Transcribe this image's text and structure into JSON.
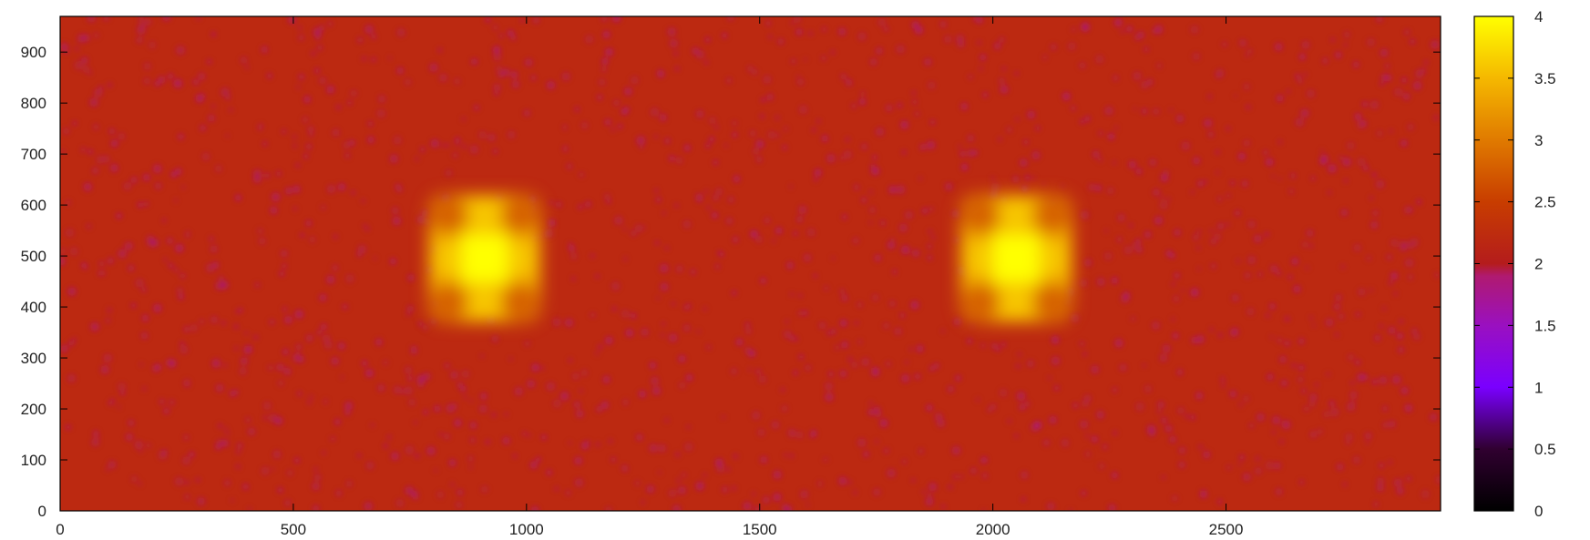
{
  "chart_data": {
    "type": "heatmap",
    "title": "",
    "xlabel": "",
    "ylabel": "",
    "xlim": [
      0,
      2960
    ],
    "ylim": [
      0,
      970
    ],
    "x_ticks": [
      0,
      500,
      1000,
      1500,
      2000,
      2500
    ],
    "y_ticks": [
      0,
      100,
      200,
      300,
      400,
      500,
      600,
      700,
      800,
      900
    ],
    "x_tick_labels": [
      "0",
      "500",
      "1000",
      "1500",
      "2000",
      "2500"
    ],
    "y_tick_labels": [
      "0",
      "100",
      "200",
      "300",
      "400",
      "500",
      "600",
      "700",
      "800",
      "900"
    ],
    "background_value": 2.2,
    "noise_low_value": 1.8,
    "features": [
      {
        "center": [
          910,
          495
        ],
        "core_value": 4.0,
        "square_value": 3.4,
        "square_half_size": [
          120,
          125
        ],
        "corner_value": 2.8
      },
      {
        "center": [
          2050,
          495
        ],
        "core_value": 4.0,
        "square_value": 3.4,
        "square_half_size": [
          120,
          125
        ],
        "corner_value": 2.8
      }
    ],
    "colorbar": {
      "range": [
        0,
        4
      ],
      "ticks": [
        0,
        0.5,
        1,
        1.5,
        2,
        2.5,
        3,
        3.5,
        4
      ],
      "tick_labels": [
        "0",
        "0.5",
        "1",
        "1.5",
        "2",
        "2.5",
        "3",
        "3.5",
        "4"
      ],
      "stops": [
        {
          "value": 0,
          "color": "#000000"
        },
        {
          "value": 0.5,
          "color": "#300030"
        },
        {
          "value": 1.0,
          "color": "#7a00ff"
        },
        {
          "value": 1.5,
          "color": "#9a10c0"
        },
        {
          "value": 1.9,
          "color": "#b01a70"
        },
        {
          "value": 2.0,
          "color": "#b41c1c"
        },
        {
          "value": 2.5,
          "color": "#c83d00"
        },
        {
          "value": 3.0,
          "color": "#e07a00"
        },
        {
          "value": 3.5,
          "color": "#f5b800"
        },
        {
          "value": 4.0,
          "color": "#ffff00"
        }
      ]
    },
    "grid": false
  }
}
